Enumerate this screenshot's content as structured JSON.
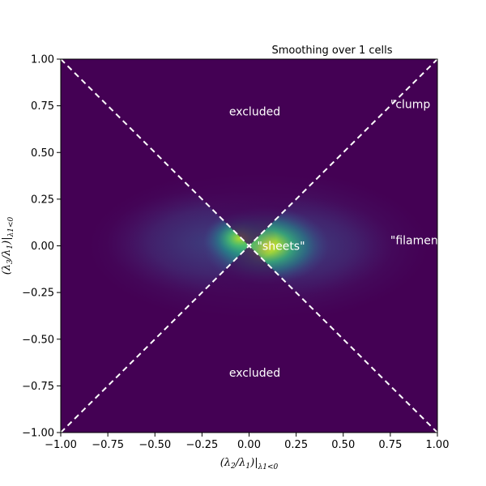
{
  "chart_data": {
    "type": "heatmap",
    "title": "Smoothing over 1 cells",
    "xlabel": "(λ2/λ1)|λ1<0",
    "ylabel": "(λ3/λ1)|λ1<0",
    "xlim": [
      -1.0,
      1.0
    ],
    "ylim": [
      -1.0,
      1.0
    ],
    "x_ticks": [
      -1.0,
      -0.75,
      -0.5,
      -0.25,
      0.0,
      0.25,
      0.5,
      0.75,
      1.0
    ],
    "y_ticks": [
      -1.0,
      -0.75,
      -0.5,
      -0.25,
      0.0,
      0.25,
      0.5,
      0.75,
      1.0
    ],
    "x_tick_labels": [
      "−1.00",
      "−0.75",
      "−0.50",
      "−0.25",
      "0.00",
      "0.25",
      "0.50",
      "0.75",
      "1.00"
    ],
    "y_tick_labels": [
      "−1.00",
      "−0.75",
      "−0.50",
      "−0.25",
      "0.00",
      "0.25",
      "0.50",
      "0.75",
      "1.00"
    ],
    "colormap": "viridis",
    "background_color": "#440154",
    "grid": false,
    "density_peaks": [
      {
        "x": 0.09,
        "y": 0.0,
        "relative_density": 1.0
      },
      {
        "x": -0.05,
        "y": 0.04,
        "relative_density": 0.8
      }
    ],
    "boundary_lines": [
      {
        "from": [
          -1.0,
          1.0
        ],
        "to": [
          1.0,
          -1.0
        ],
        "style": "dashed",
        "color": "#ffffff"
      },
      {
        "from": [
          -1.0,
          -1.0
        ],
        "to": [
          1.0,
          1.0
        ],
        "style": "dashed",
        "color": "#ffffff"
      }
    ],
    "annotations": [
      {
        "text": "excluded",
        "x": 0.03,
        "y": 0.72
      },
      {
        "text": "excluded",
        "x": 0.03,
        "y": -0.68
      },
      {
        "text": "\"clump",
        "x": 0.75,
        "y": 0.76
      },
      {
        "text": "\"filament",
        "x": 0.75,
        "y": 0.03
      },
      {
        "text": "\"sheets\"",
        "x": 0.17,
        "y": 0.0
      }
    ]
  }
}
